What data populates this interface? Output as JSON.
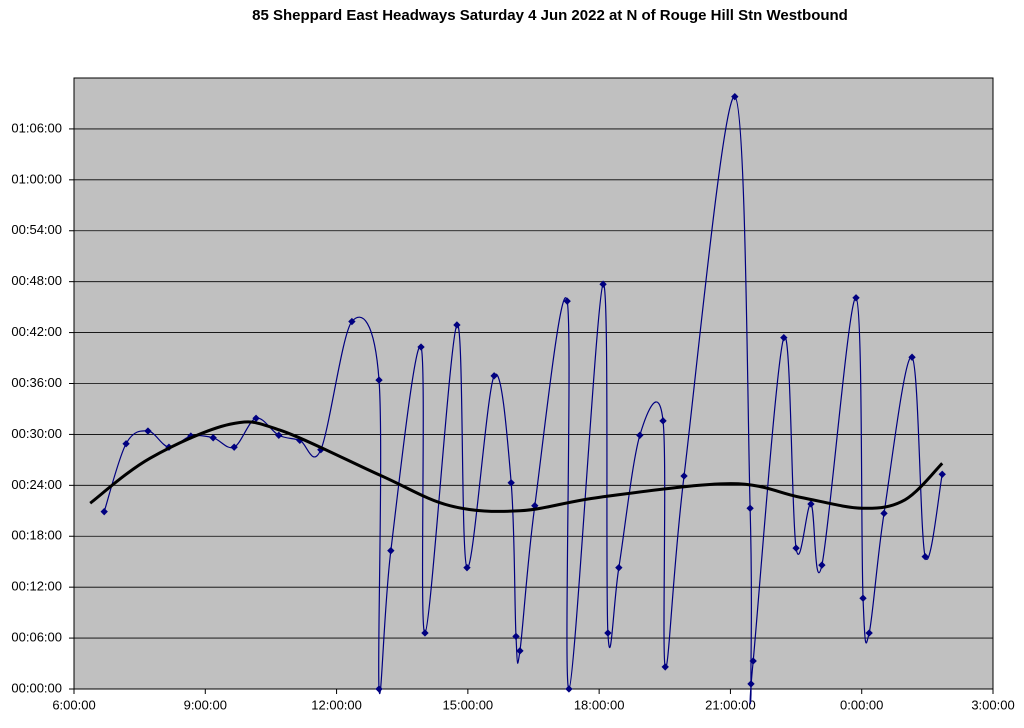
{
  "chart_data": {
    "type": "line",
    "title": "85 Sheppard East Headways Saturday 4 Jun 2022 at N of Rouge Hill Stn Westbound",
    "xlim": [
      6,
      27
    ],
    "ylim": [
      0,
      72
    ],
    "grid": true,
    "xticks": [
      {
        "value": 6,
        "label": "6:00:00"
      },
      {
        "value": 9,
        "label": "9:00:00"
      },
      {
        "value": 12,
        "label": "12:00:00"
      },
      {
        "value": 15,
        "label": "15:00:00"
      },
      {
        "value": 18,
        "label": "18:00:00"
      },
      {
        "value": 21,
        "label": "21:00:00"
      },
      {
        "value": 24,
        "label": "0:00:00"
      },
      {
        "value": 27,
        "label": "3:00:00"
      }
    ],
    "yticks": [
      {
        "value": 0,
        "label": "00:00:00"
      },
      {
        "value": 6,
        "label": "00:06:00"
      },
      {
        "value": 12,
        "label": "00:12:00"
      },
      {
        "value": 18,
        "label": "00:18:00"
      },
      {
        "value": 24,
        "label": "00:24:00"
      },
      {
        "value": 30,
        "label": "00:30:00"
      },
      {
        "value": 36,
        "label": "00:36:00"
      },
      {
        "value": 42,
        "label": "00:42:00"
      },
      {
        "value": 48,
        "label": "00:48:00"
      },
      {
        "value": 54,
        "label": "00:54:00"
      },
      {
        "value": 60,
        "label": "01:00:00"
      },
      {
        "value": 66,
        "label": "01:06:00"
      }
    ],
    "series": [
      {
        "color": "#000080",
        "markers": true,
        "width": 1.2,
        "x": [
          6.69,
          7.19,
          7.69,
          8.17,
          8.67,
          9.18,
          9.66,
          10.16,
          10.68,
          11.16,
          11.64,
          12.35,
          12.97,
          12.97,
          13.24,
          13.93,
          14.02,
          14.75,
          14.98,
          15.6,
          15.99,
          16.1,
          16.19,
          16.53,
          17.27,
          17.31,
          18.09,
          18.2,
          18.45,
          18.93,
          19.46,
          19.51,
          19.94,
          21.1,
          21.45,
          21.47,
          21.52,
          22.22,
          22.5,
          22.84,
          23.09,
          23.87,
          24.03,
          24.17,
          24.51,
          25.15,
          25.45,
          25.84
        ],
        "values": [
          20.9,
          28.9,
          30.4,
          28.5,
          29.8,
          29.6,
          28.5,
          31.9,
          29.9,
          29.3,
          28.2,
          43.3,
          36.4,
          0,
          16.3,
          40.3,
          6.6,
          42.9,
          14.3,
          36.9,
          24.3,
          6.2,
          4.5,
          21.6,
          45.7,
          0,
          47.7,
          6.6,
          14.3,
          29.9,
          31.6,
          2.6,
          25.1,
          69.8,
          21.3,
          0.6,
          3.3,
          41.4,
          16.6,
          21.8,
          14.6,
          46.1,
          10.7,
          6.6,
          20.7,
          39.1,
          15.6,
          25.3
        ]
      },
      {
        "color": "#000000",
        "markers": false,
        "width": 3,
        "x": [
          6.37,
          7.74,
          9.56,
          10.71,
          12.99,
          14.59,
          16.19,
          18.02,
          21.01,
          22.59,
          24.01,
          24.99,
          25.84
        ],
        "values": [
          21.9,
          27.2,
          31.2,
          30.5,
          25.2,
          21.6,
          21.0,
          22.6,
          24.2,
          22.6,
          21.3,
          22.3,
          26.6
        ]
      }
    ]
  }
}
